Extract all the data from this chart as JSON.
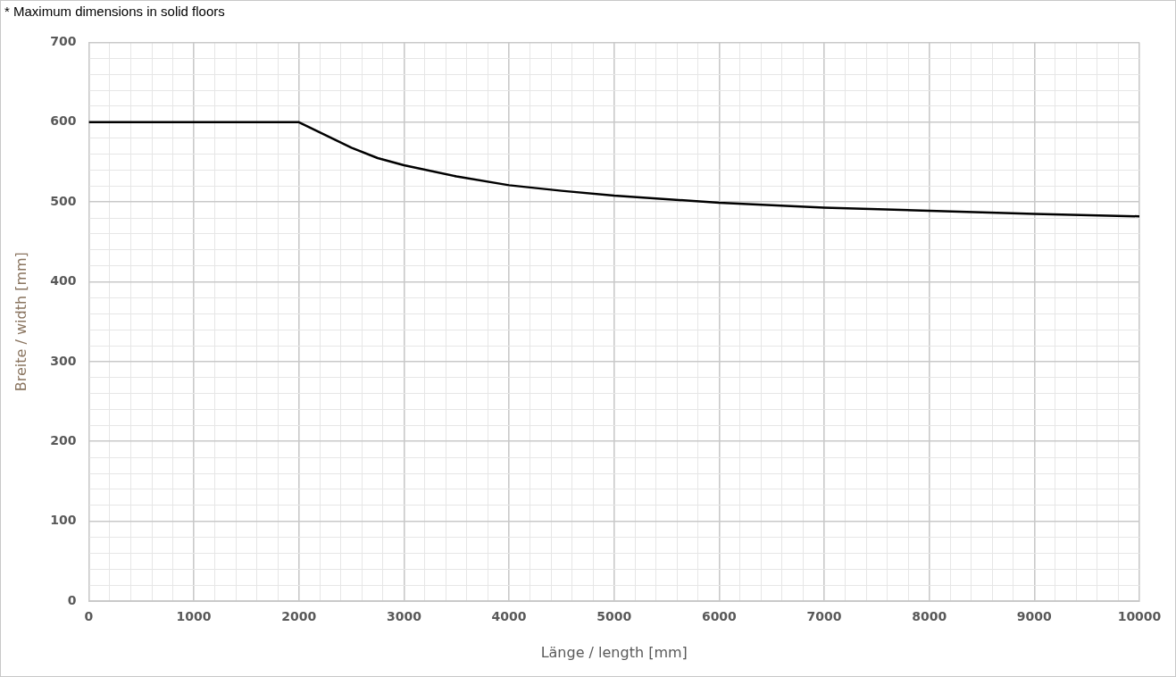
{
  "chart_data": {
    "type": "line",
    "annotations": [
      "* Maximum dimensions in solid floors"
    ],
    "xlabel": "Länge / length [mm]",
    "ylabel": "Breite / width [mm]",
    "x": [
      0,
      2000,
      2250,
      2500,
      2750,
      3000,
      3500,
      4000,
      4500,
      5000,
      6000,
      7000,
      8000,
      9000,
      10000
    ],
    "series": [
      {
        "color": "#000000",
        "values": [
          600,
          600,
          584,
          568,
          555,
          546,
          532,
          521,
          514,
          508,
          499,
          493,
          489,
          485,
          482
        ]
      }
    ],
    "xlim": [
      0,
      10000
    ],
    "ylim": [
      0,
      700
    ],
    "xticks": [
      0,
      {
        "value": 200,
        "label": null
      },
      {
        "value": 400,
        "label": null
      },
      {
        "value": 600,
        "label": null
      },
      {
        "value": 800,
        "label": null
      },
      1000,
      {
        "value": 1200,
        "label": null
      },
      {
        "value": 1400,
        "label": null
      },
      {
        "value": 1600,
        "label": null
      },
      {
        "value": 1800,
        "label": null
      },
      2000,
      {
        "value": 2200,
        "label": null
      },
      {
        "value": 2400,
        "label": null
      },
      {
        "value": 2600,
        "label": null
      },
      {
        "value": 2800,
        "label": null
      },
      3000,
      {
        "value": 3200,
        "label": null
      },
      {
        "value": 3400,
        "label": null
      },
      {
        "value": 3600,
        "label": null
      },
      {
        "value": 3800,
        "label": null
      },
      4000,
      {
        "value": 4200,
        "label": null
      },
      {
        "value": 4400,
        "label": null
      },
      {
        "value": 4600,
        "label": null
      },
      {
        "value": 4800,
        "label": null
      },
      5000,
      {
        "value": 5200,
        "label": null
      },
      {
        "value": 5400,
        "label": null
      },
      {
        "value": 5600,
        "label": null
      },
      {
        "value": 5800,
        "label": null
      },
      6000,
      {
        "value": 6200,
        "label": null
      },
      {
        "value": 6400,
        "label": null
      },
      {
        "value": 6600,
        "label": null
      },
      {
        "value": 6800,
        "label": null
      },
      7000,
      {
        "value": 7200,
        "label": null
      },
      {
        "value": 7400,
        "label": null
      },
      {
        "value": 7600,
        "label": null
      },
      {
        "value": 7800,
        "label": null
      },
      8000,
      {
        "value": 8200,
        "label": null
      },
      {
        "value": 8400,
        "label": null
      },
      {
        "value": 8600,
        "label": null
      },
      {
        "value": 8800,
        "label": null
      },
      9000,
      {
        "value": 9200,
        "label": null
      },
      {
        "value": 9400,
        "label": null
      },
      {
        "value": 9600,
        "label": null
      },
      {
        "value": 9800,
        "label": null
      },
      10000
    ],
    "yticks": [
      0,
      {
        "value": 20,
        "label": null
      },
      {
        "value": 40,
        "label": null
      },
      {
        "value": 60,
        "label": null
      },
      {
        "value": 80,
        "label": null
      },
      100,
      {
        "value": 120,
        "label": null
      },
      {
        "value": 140,
        "label": null
      },
      {
        "value": 160,
        "label": null
      },
      {
        "value": 180,
        "label": null
      },
      200,
      {
        "value": 220,
        "label": null
      },
      {
        "value": 240,
        "label": null
      },
      {
        "value": 260,
        "label": null
      },
      {
        "value": 280,
        "label": null
      },
      300,
      {
        "value": 320,
        "label": null
      },
      {
        "value": 340,
        "label": null
      },
      {
        "value": 360,
        "label": null
      },
      {
        "value": 380,
        "label": null
      },
      400,
      {
        "value": 420,
        "label": null
      },
      {
        "value": 440,
        "label": null
      },
      {
        "value": 460,
        "label": null
      },
      {
        "value": 480,
        "label": null
      },
      500,
      {
        "value": 520,
        "label": null
      },
      {
        "value": 540,
        "label": null
      },
      {
        "value": 560,
        "label": null
      },
      {
        "value": 580,
        "label": null
      },
      600,
      {
        "value": 620,
        "label": null
      },
      {
        "value": 640,
        "label": null
      },
      {
        "value": 660,
        "label": null
      },
      {
        "value": 680,
        "label": null
      },
      700
    ],
    "grid": true,
    "legend": false,
    "marker": "none",
    "line_style": "solid"
  }
}
